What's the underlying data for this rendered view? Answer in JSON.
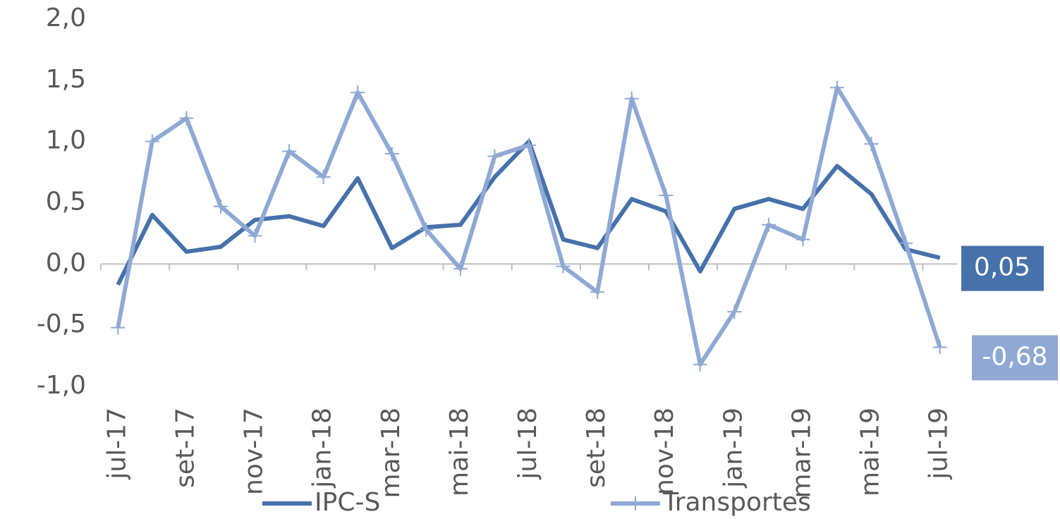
{
  "chart_data": {
    "type": "line",
    "categories": [
      "jul-17",
      null,
      "set-17",
      null,
      "nov-17",
      null,
      "jan-18",
      null,
      "mar-18",
      null,
      "mai-18",
      null,
      "jul-18",
      null,
      "set-18",
      null,
      "nov-18",
      null,
      "jan-19",
      null,
      "mar-19",
      null,
      "mai-19",
      null,
      "jul-19"
    ],
    "series": [
      {
        "name": "IPC-S",
        "color": "#4671aa",
        "values": [
          -0.17,
          0.4,
          0.1,
          0.14,
          0.36,
          0.39,
          0.31,
          0.7,
          0.13,
          0.3,
          0.32,
          0.71,
          1.0,
          0.2,
          0.13,
          0.53,
          0.43,
          -0.06,
          0.45,
          0.53,
          0.45,
          0.8,
          0.57,
          0.12,
          0.05
        ],
        "value_labels": [
          null,
          null,
          null,
          null,
          null,
          null,
          null,
          null,
          null,
          null,
          null,
          null,
          null,
          null,
          null,
          null,
          null,
          null,
          null,
          null,
          null,
          null,
          null,
          null,
          "0,05"
        ]
      },
      {
        "name": "Transportes",
        "color": "#8fa9d4",
        "marker": "plus",
        "values": [
          -0.52,
          1.0,
          1.19,
          0.47,
          0.23,
          0.92,
          0.71,
          1.4,
          0.9,
          0.28,
          -0.04,
          0.88,
          0.97,
          -0.02,
          -0.23,
          1.35,
          0.56,
          -0.82,
          -0.39,
          0.32,
          0.2,
          1.44,
          0.98,
          0.17,
          -0.68
        ],
        "value_labels": [
          null,
          null,
          null,
          null,
          null,
          null,
          null,
          null,
          null,
          null,
          null,
          null,
          null,
          null,
          null,
          null,
          null,
          null,
          null,
          null,
          null,
          null,
          null,
          null,
          "-0,68"
        ]
      }
    ],
    "ylim": [
      -1,
      2
    ],
    "yticks": [
      {
        "value": -1,
        "label": "-1,0"
      },
      {
        "value": -0.5,
        "label": "-0,5"
      },
      {
        "value": 0,
        "label": "0,0"
      },
      {
        "value": 0.5,
        "label": "0,5"
      },
      {
        "value": 1,
        "label": "1,0"
      },
      {
        "value": 1.5,
        "label": "1,5"
      },
      {
        "value": 2,
        "label": "2,0"
      }
    ],
    "grid": false,
    "legend": "bottom"
  }
}
